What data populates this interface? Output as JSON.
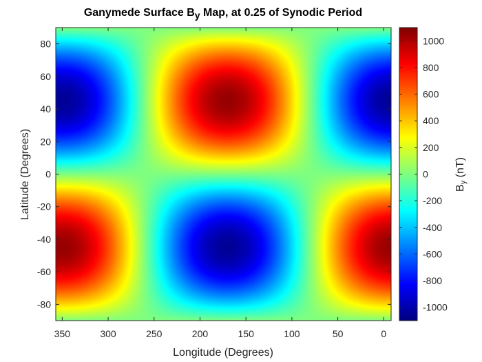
{
  "chart_data": {
    "type": "heatmap",
    "title": {
      "prefix": "Ganymede Surface B",
      "subscript": "y",
      "suffix": " Map, at 0.25 of Synodic Period"
    },
    "xlabel": "Longitude (Degrees)",
    "ylabel": "Latitude (Degrees)",
    "x_direction": "reversed",
    "xlim": [
      357,
      352
    ],
    "xlim_note": "x axis runs from 357 at left to -8 at right",
    "xrange": [
      357,
      -8
    ],
    "ylim": [
      -90,
      90
    ],
    "xticks": [
      {
        "value": 350,
        "label": "350"
      },
      {
        "value": 300,
        "label": "300"
      },
      {
        "value": 250,
        "label": "250"
      },
      {
        "value": 200,
        "label": "200"
      },
      {
        "value": 150,
        "label": "150"
      },
      {
        "value": 100,
        "label": "100"
      },
      {
        "value": 50,
        "label": "50"
      },
      {
        "value": 0,
        "label": "0"
      }
    ],
    "yticks": [
      {
        "value": 80,
        "label": "80"
      },
      {
        "value": 60,
        "label": "60"
      },
      {
        "value": 40,
        "label": "40"
      },
      {
        "value": 20,
        "label": "20"
      },
      {
        "value": 0,
        "label": "0"
      },
      {
        "value": -20,
        "label": "-20"
      },
      {
        "value": -40,
        "label": "-40"
      },
      {
        "value": -60,
        "label": "-60"
      },
      {
        "value": -80,
        "label": "-80"
      }
    ],
    "colorbar": {
      "label_prefix": "B",
      "label_subscript": "y",
      "label_suffix": " (nT)",
      "colormap": "jet",
      "clim": [
        -1100,
        1100
      ],
      "ticks": [
        {
          "value": 1000,
          "label": "1000"
        },
        {
          "value": 800,
          "label": "800"
        },
        {
          "value": 600,
          "label": "600"
        },
        {
          "value": 400,
          "label": "400"
        },
        {
          "value": 200,
          "label": "200"
        },
        {
          "value": 0,
          "label": "0"
        },
        {
          "value": -200,
          "label": "-200"
        },
        {
          "value": -400,
          "label": "-400"
        },
        {
          "value": -600,
          "label": "-600"
        },
        {
          "value": -800,
          "label": "-800"
        },
        {
          "value": -1000,
          "label": "-1000"
        }
      ]
    },
    "field": {
      "amplitude_nT": 1050,
      "form": "A * cos(longitude - 170) * sin(2 * latitude)",
      "phase_longitude_deg": 170
    },
    "extrema": [
      {
        "kind": "max",
        "longitude": 170,
        "latitude": 45,
        "value": 1050
      },
      {
        "kind": "min",
        "longitude": 350,
        "latitude": 45,
        "value": -1050
      },
      {
        "kind": "min",
        "longitude": 170,
        "latitude": -45,
        "value": -1050
      },
      {
        "kind": "max",
        "longitude": -10,
        "latitude": -45,
        "value": 1050
      }
    ]
  }
}
